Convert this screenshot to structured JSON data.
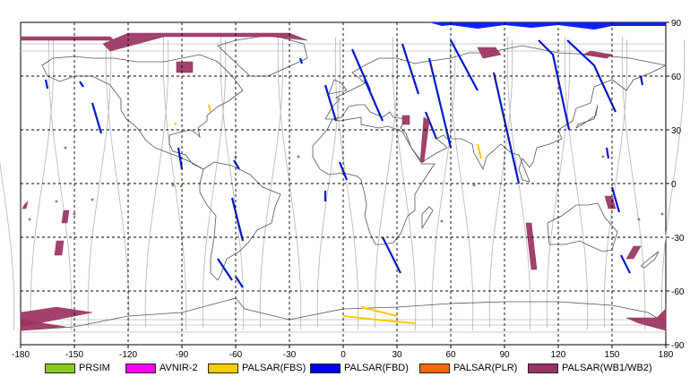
{
  "map": {
    "lon_range": [
      -180,
      180
    ],
    "lat_range": [
      -90,
      90
    ],
    "x_ticks": [
      "-180",
      "-150",
      "-120",
      "-90",
      "-60",
      "-30",
      "0",
      "30",
      "60",
      "90",
      "120",
      "150",
      "180"
    ],
    "y_ticks": [
      "90",
      "60",
      "30",
      "0",
      "-30",
      "-60",
      "-90"
    ],
    "grid": "dashed",
    "colors": {
      "coast": "#555555",
      "orbit": "#bbbbbb",
      "fbd": "#0018c8",
      "fbs": "#ffc800",
      "wb": "#99335f",
      "top_band": "#1020ff"
    }
  },
  "legend": [
    {
      "label": "PRSIM",
      "color": "#88cc22"
    },
    {
      "label": "AVNIR-2",
      "color": "#ff00ff"
    },
    {
      "label": "PALSAR(FBS)",
      "color": "#ffcc00"
    },
    {
      "label": "PALSAR(FBD)",
      "color": "#0000ee"
    },
    {
      "label": "PALSAR(PLR)",
      "color": "#ff6600"
    },
    {
      "label": "PALSAR(WB1/WB2)",
      "color": "#993366"
    }
  ]
}
